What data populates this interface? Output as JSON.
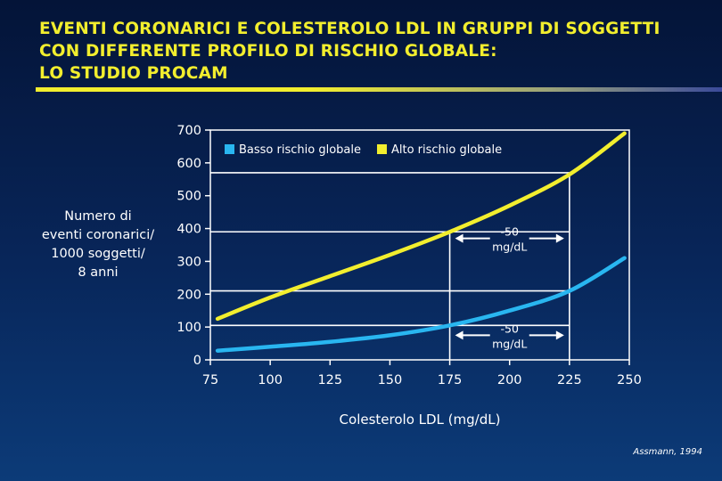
{
  "title": {
    "lines": [
      "EVENTI CORONARICI E COLESTEROLO LDL IN GRUPPI DI SOGGETTI",
      "CON DIFFERENTE PROFILO DI RISCHIO GLOBALE:",
      "LO STUDIO PROCAM"
    ]
  },
  "source": "Assmann, 1994",
  "chart_data": {
    "type": "line",
    "ylabel": "Numero di\neventi coronarici/\n1000 soggetti/\n8 anni",
    "xlabel": "Colesterolo LDL (mg/dL)",
    "xlim": [
      75,
      250
    ],
    "ylim": [
      0,
      700
    ],
    "xticks": [
      "75",
      "100",
      "125",
      "150",
      "175",
      "200",
      "225",
      "250"
    ],
    "yticks": [
      "0",
      "100",
      "200",
      "300",
      "400",
      "500",
      "600",
      "700"
    ],
    "legend_position": "top-left",
    "series": [
      {
        "name": "Basso rischio globale",
        "color": "#29b6f0",
        "x": [
          78,
          100,
          125,
          150,
          175,
          200,
          225,
          248
        ],
        "y": [
          28,
          40,
          55,
          75,
          105,
          150,
          210,
          310
        ]
      },
      {
        "name": "Alto rischio globale",
        "color": "#f2ee2e",
        "x": [
          78,
          100,
          125,
          150,
          175,
          200,
          225,
          248
        ],
        "y": [
          125,
          190,
          255,
          320,
          390,
          470,
          565,
          690
        ]
      }
    ],
    "reference_lines": {
      "horizontal_y": [
        390,
        570,
        105,
        210
      ],
      "vertical_x": [
        175,
        225
      ]
    },
    "annotations": [
      {
        "text": [
          "-50",
          "mg/dL"
        ],
        "x_from": 175,
        "x_to": 225,
        "y": 370
      },
      {
        "text": [
          "-50",
          "mg/dL"
        ],
        "x_from": 175,
        "x_to": 225,
        "y": 75
      }
    ]
  }
}
